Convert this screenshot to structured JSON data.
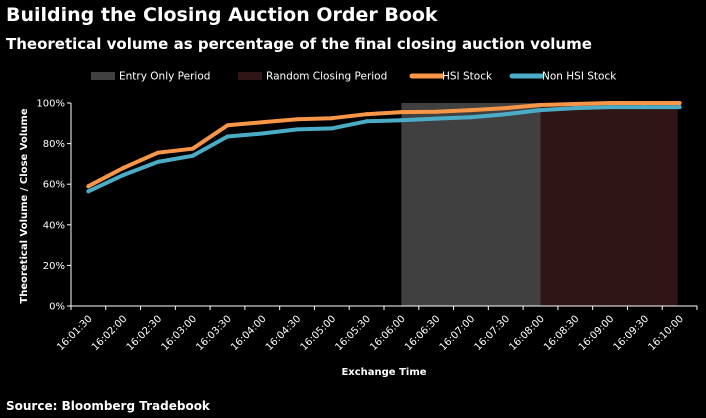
{
  "header": {
    "title": "Building the Closing Auction Order Book",
    "subtitle": "Theoretical volume as percentage of the final closing auction volume"
  },
  "footer": {
    "source": "Bloomberg Tradebook"
  },
  "colors": {
    "background": "#000000",
    "entry_only_period": "#404040",
    "random_closing_period": "#2e1616",
    "hsi_stock": "#f79646",
    "non_hsi_stock": "#4bacc6",
    "text": "#ffffff"
  },
  "chart_data": {
    "type": "line",
    "title": "Building the Closing Auction Order Book",
    "subtitle": "Theoretical volume as percentage of the final closing auction volume",
    "xlabel": "Exchange Time",
    "ylabel": "Theoretical Volume / Close Volume",
    "ylim": [
      0,
      100
    ],
    "yticks": [
      "0%",
      "20%",
      "40%",
      "60%",
      "80%",
      "100%"
    ],
    "grid": false,
    "legend_position": "top",
    "x": [
      "16:01:30",
      "16:02:00",
      "16:02:30",
      "16:03:00",
      "16:03:30",
      "16:04:00",
      "16:04:30",
      "16:05:00",
      "16:05:30",
      "16:06:00",
      "16:06:30",
      "16:07:00",
      "16:07:30",
      "16:08:00",
      "16:08:30",
      "16:09:00",
      "16:09:30",
      "16:10:00"
    ],
    "periods": [
      {
        "name": "Entry Only Period",
        "from": "16:06:00",
        "to": "16:08:00",
        "color": "#404040"
      },
      {
        "name": "Random Closing Period",
        "from": "16:08:00",
        "to": "16:10:00",
        "color": "#2e1616"
      }
    ],
    "series": [
      {
        "name": "HSI Stock",
        "color": "#f79646",
        "values": [
          59,
          68,
          75.5,
          77.5,
          89,
          90.5,
          92,
          92.5,
          94.5,
          95.5,
          95.7,
          96.5,
          97.5,
          99,
          99.5,
          100,
          100,
          100
        ]
      },
      {
        "name": "Non HSI Stock",
        "color": "#4bacc6",
        "values": [
          56.5,
          64.5,
          71,
          74,
          83.5,
          85,
          87,
          87.5,
          91,
          91.5,
          92.3,
          93,
          94.5,
          96.5,
          97.5,
          98,
          98,
          98
        ]
      }
    ]
  }
}
